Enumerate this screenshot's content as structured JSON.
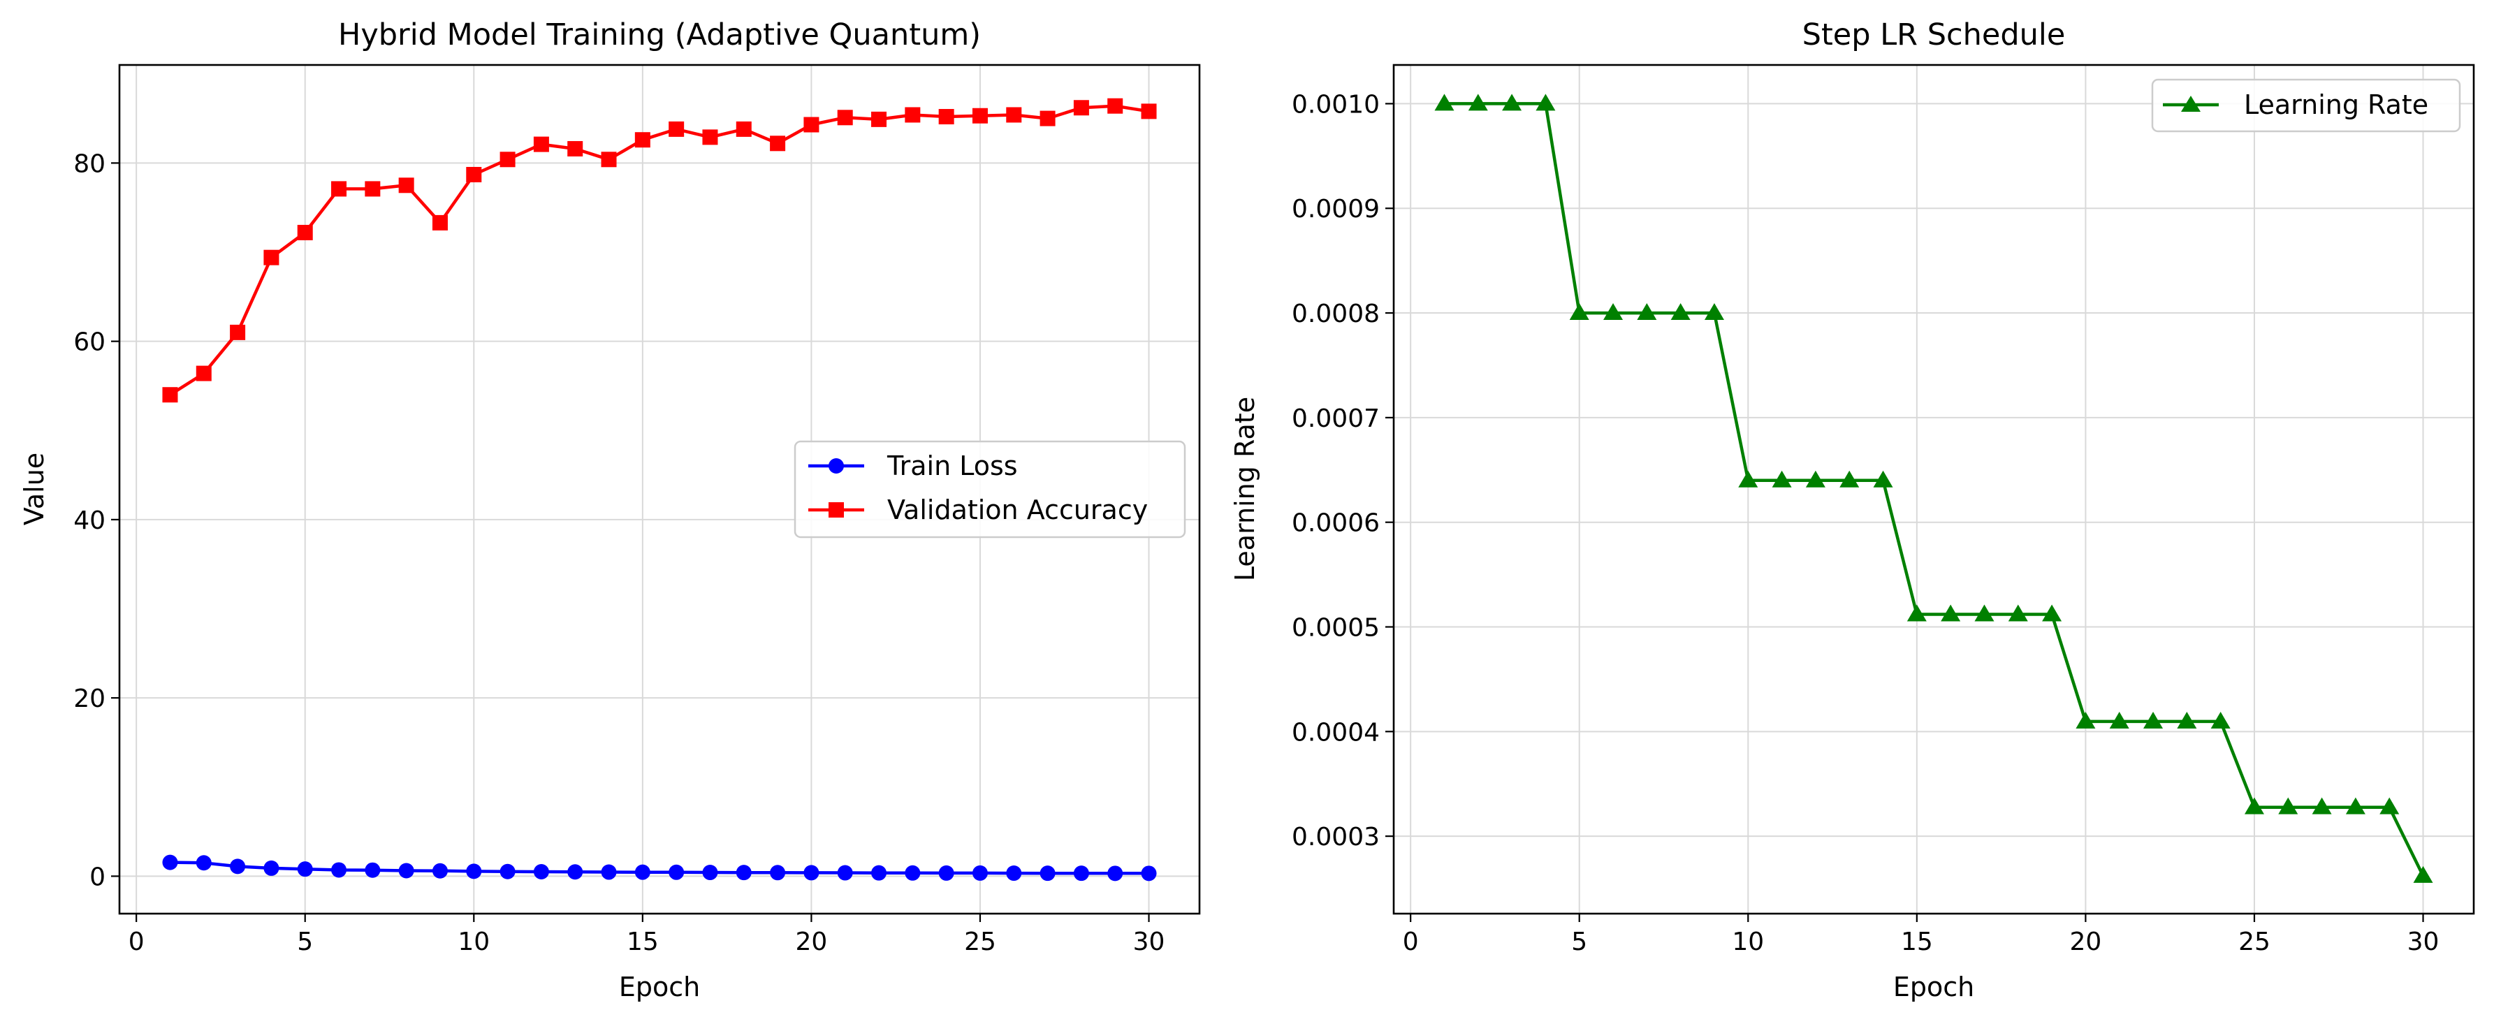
{
  "chart_data": [
    {
      "type": "line",
      "title": "Hybrid Model Training (Adaptive Quantum)",
      "xlabel": "Epoch",
      "ylabel": "Value",
      "xlim": [
        -0.5,
        31.5
      ],
      "ylim": [
        -4.2,
        91
      ],
      "xticks": [
        0,
        5,
        10,
        15,
        20,
        25,
        30
      ],
      "yticks": [
        0,
        20,
        40,
        60,
        80
      ],
      "grid": true,
      "legend_position": "center-right",
      "x": [
        1,
        2,
        3,
        4,
        5,
        6,
        7,
        8,
        9,
        10,
        11,
        12,
        13,
        14,
        15,
        16,
        17,
        18,
        19,
        20,
        21,
        22,
        23,
        24,
        25,
        26,
        27,
        28,
        29,
        30
      ],
      "series": [
        {
          "name": "Train Loss",
          "color": "#0000ff",
          "marker": "circle",
          "values": [
            1.55,
            1.5,
            1.1,
            0.9,
            0.8,
            0.7,
            0.68,
            0.62,
            0.6,
            0.55,
            0.52,
            0.5,
            0.48,
            0.46,
            0.45,
            0.44,
            0.42,
            0.41,
            0.4,
            0.39,
            0.38,
            0.37,
            0.36,
            0.35,
            0.35,
            0.34,
            0.33,
            0.33,
            0.32,
            0.32
          ]
        },
        {
          "name": "Validation Accuracy",
          "color": "#ff0000",
          "marker": "square",
          "values": [
            54.0,
            56.4,
            61.0,
            69.4,
            72.2,
            77.1,
            77.1,
            77.5,
            73.3,
            78.7,
            80.4,
            82.1,
            81.6,
            80.4,
            82.6,
            83.8,
            82.9,
            83.8,
            82.2,
            84.3,
            85.1,
            84.9,
            85.4,
            85.2,
            85.3,
            85.4,
            85.0,
            86.2,
            86.4,
            85.8
          ]
        }
      ]
    },
    {
      "type": "line",
      "title": "Step LR Schedule",
      "xlabel": "Epoch",
      "ylabel": "Learning Rate",
      "xlim": [
        -0.5,
        31.5
      ],
      "ylim": [
        0.000226,
        0.001037
      ],
      "xticks": [
        0,
        5,
        10,
        15,
        20,
        25,
        30
      ],
      "yticks": [
        0.0003,
        0.0004,
        0.0005,
        0.0006,
        0.0007,
        0.0008,
        0.0009,
        0.001
      ],
      "ytick_labels": [
        "0.0003",
        "0.0004",
        "0.0005",
        "0.0006",
        "0.0007",
        "0.0008",
        "0.0009",
        "0.0010"
      ],
      "grid": true,
      "legend_position": "top-right",
      "x": [
        1,
        2,
        3,
        4,
        5,
        6,
        7,
        8,
        9,
        10,
        11,
        12,
        13,
        14,
        15,
        16,
        17,
        18,
        19,
        20,
        21,
        22,
        23,
        24,
        25,
        26,
        27,
        28,
        29,
        30
      ],
      "series": [
        {
          "name": "Learning Rate",
          "color": "#008000",
          "marker": "triangle",
          "values": [
            0.001,
            0.001,
            0.001,
            0.001,
            0.0008,
            0.0008,
            0.0008,
            0.0008,
            0.0008,
            0.00064,
            0.00064,
            0.00064,
            0.00064,
            0.00064,
            0.000512,
            0.000512,
            0.000512,
            0.000512,
            0.000512,
            0.0004096,
            0.0004096,
            0.0004096,
            0.0004096,
            0.0004096,
            0.00032768,
            0.00032768,
            0.00032768,
            0.00032768,
            0.00032768,
            0.000262144
          ]
        }
      ]
    }
  ]
}
